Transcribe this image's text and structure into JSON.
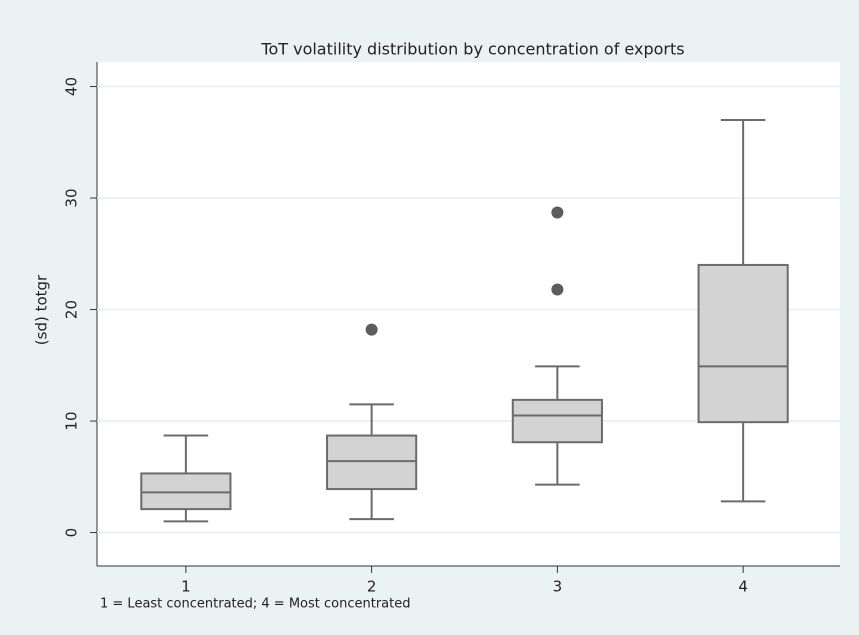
{
  "chart_data": {
    "type": "box",
    "title": "ToT volatility distribution by concentration of exports",
    "y_label": "(sd) totgr",
    "note": "1 = Least concentrated; 4 = Most concentrated",
    "categories": [
      "1",
      "2",
      "3",
      "4"
    ],
    "boxes": [
      {
        "low": 1.0,
        "q1": 2.1,
        "median": 3.6,
        "q3": 5.3,
        "high": 8.7,
        "outliers": []
      },
      {
        "low": 1.2,
        "q1": 3.9,
        "median": 6.4,
        "q3": 8.7,
        "high": 11.5,
        "outliers": [
          18.2
        ]
      },
      {
        "low": 4.3,
        "q1": 8.1,
        "median": 10.5,
        "q3": 11.9,
        "high": 14.9,
        "outliers": [
          21.8,
          28.7
        ]
      },
      {
        "low": 2.8,
        "q1": 9.9,
        "median": 14.9,
        "q3": 24.0,
        "high": 37.0,
        "outliers": []
      }
    ],
    "box_color": "#d3d3d3",
    "line_color": "#6b6b6b",
    "marker_color": "#5c5c5c",
    "ylim": [
      -3,
      42.2
    ],
    "yticks": [
      0,
      10,
      20,
      30,
      40
    ],
    "grid": true
  }
}
